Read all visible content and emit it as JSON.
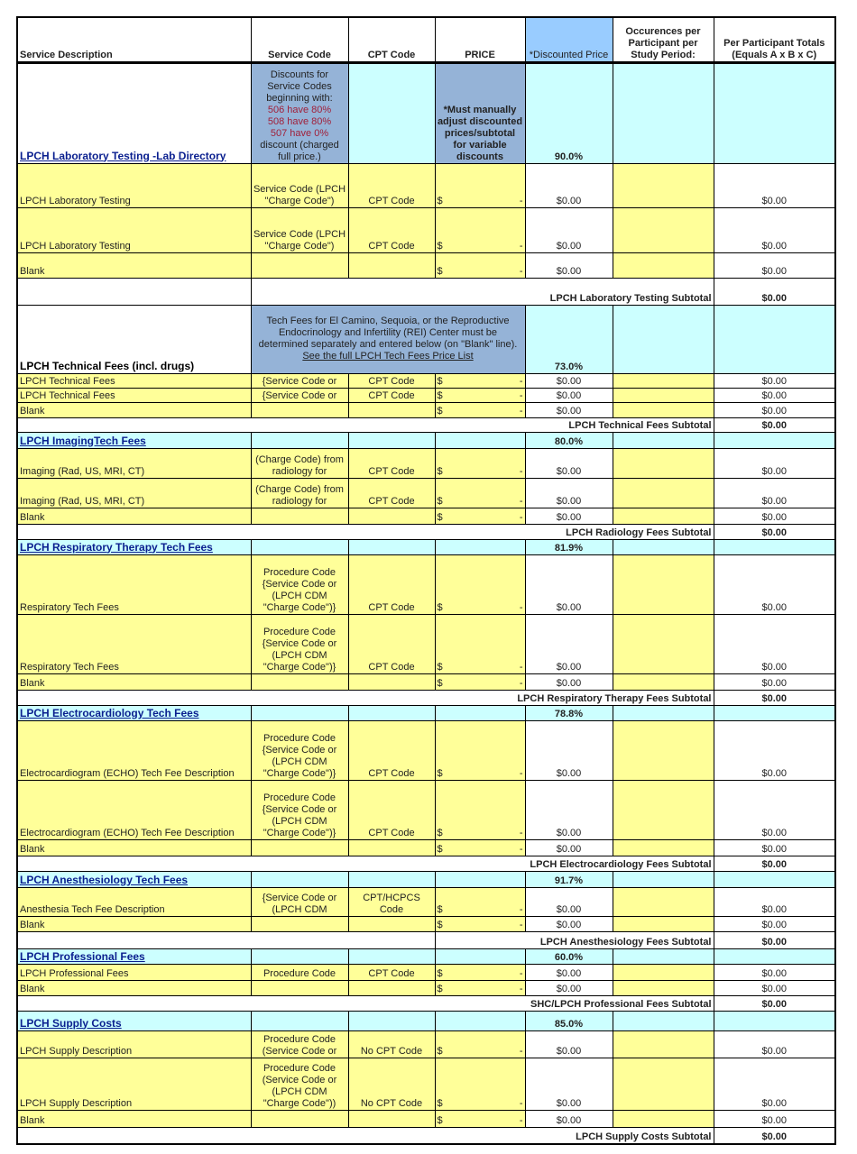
{
  "header": {
    "columns": [
      "Service Description",
      "Service Code",
      "CPT Code",
      "PRICE",
      "*Discounted Price",
      "Occurences per Participant per Study Period:",
      "Per Participant Totals (Equals A x B x C)"
    ]
  },
  "colors": {
    "yellow": "#ffff99",
    "cyan": "#ccffff",
    "blue": "#95b3d7",
    "header_blue": "#99ccff",
    "link": "#0a1f8f",
    "red_note": "#a0203a"
  },
  "sections": [
    {
      "title": "LPCH Laboratory Testing -Lab Directory",
      "link": true,
      "discount": "90.0%",
      "service_code_note": [
        {
          "text": "Discounts for",
          "red": false
        },
        {
          "text": "Service Codes",
          "red": false
        },
        {
          "text": "beginning with:",
          "red": false
        },
        {
          "text": "506 have 80%",
          "red": true
        },
        {
          "text": "508 have 80%",
          "red": true
        },
        {
          "text": "507 have 0%",
          "red": true
        },
        {
          "text": "discount (charged",
          "red": false
        },
        {
          "text": "full price.)",
          "red": false
        }
      ],
      "price_note": "*Must manually adjust discounted prices/subtotal for variable discounts",
      "rows": [
        {
          "desc": "LPCH Laboratory Testing",
          "service_code": "Service Code (LPCH \"Charge Code\")",
          "cpt": "CPT Code",
          "price_symbol": "$",
          "price": "-",
          "discounted": "$0.00",
          "total": "$0.00"
        },
        {
          "desc": "LPCH Laboratory Testing",
          "service_code": "Service Code (LPCH \"Charge Code\")",
          "cpt": "CPT Code",
          "price_symbol": "$",
          "price": "-",
          "discounted": "$0.00",
          "total": "$0.00"
        },
        {
          "desc": "Blank",
          "service_code": "",
          "cpt": "",
          "price_symbol": "$",
          "price": "-",
          "discounted": "$0.00",
          "total": "$0.00"
        }
      ],
      "subtotal_label": "LPCH Laboratory Testing Subtotal",
      "subtotal_value": "$0.00"
    },
    {
      "title": "LPCH Technical Fees (incl. drugs)",
      "link": false,
      "discount": "73.0%",
      "span_note": "Tech Fees for El Camino, Sequoia, or the Reproductive Endocrinology and Infertility (REI) Center must be determined separately and entered below (on \"Blank\" line).",
      "span_note_link": "See the full LPCH Tech Fees Price List",
      "rows": [
        {
          "desc": "LPCH Technical Fees",
          "service_code": "{Service Code or",
          "cpt": "CPT Code",
          "price_symbol": "$",
          "price": "-",
          "discounted": "$0.00",
          "total": "$0.00"
        },
        {
          "desc": "LPCH Technical Fees",
          "service_code": "{Service Code or",
          "cpt": "CPT Code",
          "price_symbol": "$",
          "price": "-",
          "discounted": "$0.00",
          "total": "$0.00"
        },
        {
          "desc": "Blank",
          "service_code": "",
          "cpt": "",
          "price_symbol": "$",
          "price": "-",
          "discounted": "$0.00",
          "total": "$0.00"
        }
      ],
      "subtotal_label": "LPCH Technical Fees Subtotal",
      "subtotal_value": "$0.00"
    },
    {
      "title": "LPCH ImagingTech Fees",
      "link": true,
      "discount": "80.0%",
      "rows": [
        {
          "desc": "Imaging (Rad, US, MRI, CT)",
          "service_code": "(Charge Code) from radiology for",
          "cpt": "CPT Code",
          "price_symbol": "$",
          "price": "-",
          "discounted": "$0.00",
          "total": "$0.00"
        },
        {
          "desc": "Imaging (Rad, US, MRI, CT)",
          "service_code": "(Charge Code) from radiology for",
          "cpt": "CPT Code",
          "price_symbol": "$",
          "price": "-",
          "discounted": "$0.00",
          "total": "$0.00"
        },
        {
          "desc": "Blank",
          "service_code": "",
          "cpt": "",
          "price_symbol": "$",
          "price": "-",
          "discounted": "$0.00",
          "total": "$0.00"
        }
      ],
      "subtotal_label": "LPCH Radiology Fees Subtotal",
      "subtotal_value": "$0.00"
    },
    {
      "title": "LPCH Respiratory Therapy Tech Fees",
      "link": true,
      "discount": "81.9%",
      "rows": [
        {
          "desc": "Respiratory Tech Fees",
          "service_code": "Procedure Code {Service Code or (LPCH CDM \"Charge Code\")}",
          "cpt": "CPT Code",
          "price_symbol": "$",
          "price": "-",
          "discounted": "$0.00",
          "total": "$0.00"
        },
        {
          "desc": "Respiratory Tech Fees",
          "service_code": "Procedure Code {Service Code or (LPCH CDM \"Charge Code\")}",
          "cpt": "CPT Code",
          "price_symbol": "$",
          "price": "-",
          "discounted": "$0.00",
          "total": "$0.00"
        },
        {
          "desc": "Blank",
          "service_code": "",
          "cpt": "",
          "price_symbol": "$",
          "price": "-",
          "discounted": "$0.00",
          "total": "$0.00"
        }
      ],
      "subtotal_label": "LPCH Respiratory Therapy Fees Subtotal",
      "subtotal_value": "$0.00"
    },
    {
      "title": "LPCH  Electrocardiology Tech Fees",
      "link": true,
      "discount": "78.8%",
      "rows": [
        {
          "desc": "Electrocardiogram (ECHO) Tech Fee Description",
          "service_code": "Procedure Code {Service Code or (LPCH CDM \"Charge Code\")}",
          "cpt": "CPT Code",
          "price_symbol": "$",
          "price": "-",
          "discounted": "$0.00",
          "total": "$0.00"
        },
        {
          "desc": "Electrocardiogram (ECHO) Tech Fee Description",
          "service_code": "Procedure Code {Service Code or (LPCH CDM \"Charge Code\")}",
          "cpt": "CPT Code",
          "price_symbol": "$",
          "price": "-",
          "discounted": "$0.00",
          "total": "$0.00"
        },
        {
          "desc": "Blank",
          "service_code": "",
          "cpt": "",
          "price_symbol": "$",
          "price": "-",
          "discounted": "$0.00",
          "total": "$0.00"
        }
      ],
      "subtotal_label": "LPCH Electrocardiology Fees Subtotal",
      "subtotal_value": "$0.00"
    },
    {
      "title": "LPCH  Anesthesiology Tech Fees",
      "link": true,
      "discount": "91.7%",
      "rows": [
        {
          "desc": "Anesthesia Tech Fee Description",
          "service_code": "{Service Code or (LPCH CDM",
          "cpt": "CPT/HCPCS Code",
          "price_symbol": "$",
          "price": "-",
          "discounted": "$0.00",
          "total": "$0.00"
        },
        {
          "desc": "Blank",
          "service_code": "",
          "cpt": "",
          "price_symbol": "$",
          "price": "-",
          "discounted": "$0.00",
          "total": "$0.00"
        }
      ],
      "subtotal_label": "LPCH Anesthesiology Fees Subtotal",
      "subtotal_value": "$0.00"
    },
    {
      "title": "LPCH  Professional Fees",
      "link": true,
      "discount": "60.0%",
      "rows": [
        {
          "desc": "LPCH Professional Fees",
          "service_code": "Procedure Code",
          "cpt": "CPT Code",
          "price_symbol": "$",
          "price": "-",
          "discounted": "$0.00",
          "total": "$0.00"
        },
        {
          "desc": "Blank",
          "service_code": "",
          "cpt": "",
          "price_symbol": "$",
          "price": "-",
          "discounted": "$0.00",
          "total": "$0.00"
        }
      ],
      "subtotal_label": "SHC/LPCH Professional Fees Subtotal",
      "subtotal_value": "$0.00"
    },
    {
      "title": "LPCH Supply Costs",
      "link": true,
      "discount": "85.0%",
      "rows": [
        {
          "desc": "LPCH Supply Description",
          "service_code": "Procedure Code (Service Code or",
          "cpt": "No CPT Code",
          "price_symbol": "$",
          "price": "-",
          "discounted": "$0.00",
          "total": "$0.00"
        },
        {
          "desc": "LPCH Supply Description",
          "service_code": "Procedure Code (Service Code or (LPCH CDM \"Charge Code\"))",
          "cpt": "No CPT Code",
          "price_symbol": "$",
          "price": "-",
          "discounted": "$0.00",
          "total": "$0.00"
        },
        {
          "desc": "Blank",
          "service_code": "",
          "cpt": "",
          "price_symbol": "$",
          "price": "-",
          "discounted": "$0.00",
          "total": "$0.00"
        }
      ],
      "subtotal_label": "LPCH Supply Costs Subtotal",
      "subtotal_value": "$0.00"
    }
  ]
}
